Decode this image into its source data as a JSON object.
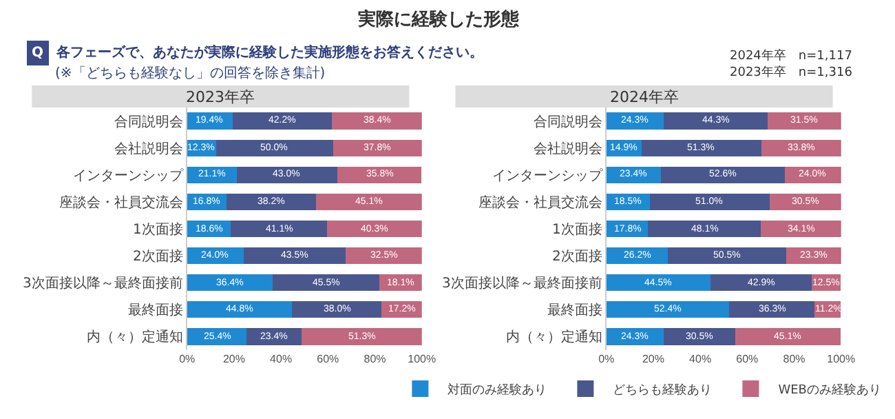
{
  "chart_data": [
    {
      "type": "bar",
      "orientation": "horizontal",
      "stacked": true,
      "title": "2023年卒",
      "annotations": [
        "実際に経験した形態",
        "Q",
        "各フェーズで、あなたが実際に経験した実施形態をお答えください。",
        "(※「どちらも経験なし」の回答を除き集計)"
      ],
      "categories": [
        "合同説明会",
        "会社説明会",
        "インターンシップ",
        "座談会・社員交流会",
        "1次面接",
        "2次面接",
        "3次面接以降～最終面接前",
        "最終面接",
        "内（々）定通知"
      ],
      "series": [
        {
          "name": "対面のみ経験あり",
          "color": "#1f8ad2",
          "values": [
            19.4,
            12.3,
            21.1,
            16.8,
            18.6,
            24.0,
            36.4,
            44.8,
            25.4
          ],
          "value_labels": [
            "19.4%",
            "12.3%",
            "21.1%",
            "16.8%",
            "18.6%",
            "24.0%",
            "36.4%",
            "44.8%",
            "25.4%"
          ]
        },
        {
          "name": "どちらも経験あり",
          "color": "#4a578d",
          "values": [
            42.2,
            50.0,
            43.0,
            38.2,
            41.1,
            43.5,
            45.5,
            38.0,
            23.4
          ],
          "value_labels": [
            "42.2%",
            "50.0%",
            "43.0%",
            "38.2%",
            "41.1%",
            "43.5%",
            "45.5%",
            "38.0%",
            "23.4%"
          ]
        },
        {
          "name": "WEBのみ経験あり",
          "color": "#c06880",
          "values": [
            38.4,
            37.8,
            35.8,
            45.1,
            40.3,
            32.5,
            18.1,
            17.2,
            51.3
          ],
          "value_labels": [
            "38.4%",
            "37.8%",
            "35.8%",
            "45.1%",
            "40.3%",
            "32.5%",
            "18.1%",
            "17.2%",
            "51.3%"
          ]
        }
      ],
      "xlim": [
        0,
        100
      ],
      "xticks": [
        {
          "value": 0,
          "label": "0%"
        },
        {
          "value": 20,
          "label": "20%"
        },
        {
          "value": 40,
          "label": "40%"
        },
        {
          "value": 60,
          "label": "60%"
        },
        {
          "value": 80,
          "label": "80%"
        },
        {
          "value": 100,
          "label": "100%"
        }
      ],
      "legend": "bottom"
    },
    {
      "type": "bar",
      "orientation": "horizontal",
      "stacked": true,
      "title": "2024年卒",
      "annotations": [
        "2024年卒　n=1,117",
        "2023年卒　n=1,316"
      ],
      "categories": [
        "合同説明会",
        "会社説明会",
        "インターンシップ",
        "座談会・社員交流会",
        "1次面接",
        "2次面接",
        "3次面接以降～最終面接前",
        "最終面接",
        "内（々）定通知"
      ],
      "series": [
        {
          "color": "#1f8ad2",
          "values": [
            24.3,
            14.9,
            23.4,
            18.5,
            17.8,
            26.2,
            44.5,
            52.4,
            24.3
          ],
          "value_labels": [
            "24.3%",
            "14.9%",
            "23.4%",
            "18.5%",
            "17.8%",
            "26.2%",
            "44.5%",
            "52.4%",
            "24.3%"
          ]
        },
        {
          "color": "#4a578d",
          "values": [
            44.3,
            51.3,
            52.6,
            51.0,
            48.1,
            50.5,
            42.9,
            36.3,
            30.5
          ],
          "value_labels": [
            "44.3%",
            "51.3%",
            "52.6%",
            "51.0%",
            "48.1%",
            "50.5%",
            "42.9%",
            "36.3%",
            "30.5%"
          ]
        },
        {
          "color": "#c06880",
          "values": [
            31.5,
            33.8,
            24.0,
            30.5,
            34.1,
            23.3,
            12.5,
            11.2,
            45.1
          ],
          "value_labels": [
            "31.5%",
            "33.8%",
            "24.0%",
            "30.5%",
            "34.1%",
            "23.3%",
            "12.5%",
            "11.2%",
            "45.1%"
          ]
        }
      ],
      "xlim": [
        0,
        100
      ],
      "xticks": [
        {
          "value": 0,
          "label": "0%"
        },
        {
          "value": 20,
          "label": "20%"
        },
        {
          "value": 40,
          "label": "40%"
        },
        {
          "value": 60,
          "label": "60%"
        },
        {
          "value": 80,
          "label": "80%"
        },
        {
          "value": 100,
          "label": "100%"
        }
      ],
      "legend": false
    }
  ]
}
